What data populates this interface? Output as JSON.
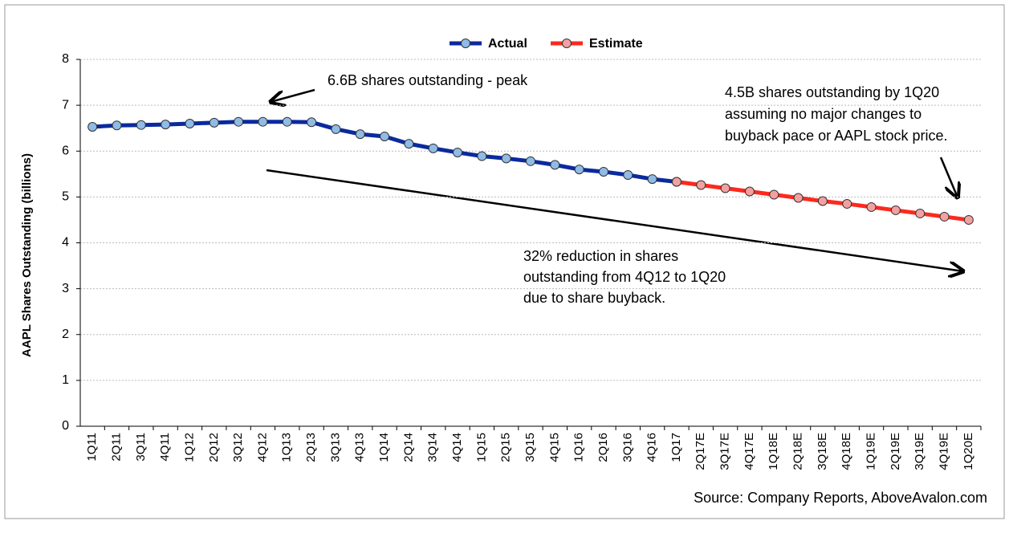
{
  "chart_data": {
    "type": "line",
    "y_label": "AAPL Shares Outstanding (billions)",
    "categories": [
      "1Q11",
      "2Q11",
      "3Q11",
      "4Q11",
      "1Q12",
      "2Q12",
      "3Q12",
      "4Q12",
      "1Q13",
      "2Q13",
      "3Q13",
      "4Q13",
      "1Q14",
      "2Q14",
      "3Q14",
      "4Q14",
      "1Q15",
      "2Q15",
      "3Q15",
      "4Q15",
      "1Q16",
      "2Q16",
      "3Q16",
      "4Q16",
      "1Q17",
      "2Q17E",
      "3Q17E",
      "4Q17E",
      "1Q18E",
      "2Q18E",
      "3Q18E",
      "4Q18E",
      "1Q19E",
      "2Q19E",
      "3Q19E",
      "4Q19E",
      "1Q20E"
    ],
    "series": [
      {
        "name": "Actual",
        "color": "#0a2a9e",
        "marker_color": "#8fbbe6",
        "values": [
          6.53,
          6.56,
          6.57,
          6.58,
          6.6,
          6.62,
          6.64,
          6.64,
          6.64,
          6.63,
          6.48,
          6.37,
          6.32,
          6.16,
          6.06,
          5.97,
          5.89,
          5.84,
          5.78,
          5.7,
          5.6,
          5.55,
          5.48,
          5.39,
          5.33,
          null,
          null,
          null,
          null,
          null,
          null,
          null,
          null,
          null,
          null,
          null,
          null
        ]
      },
      {
        "name": "Estimate",
        "color": "#fb2a1e",
        "marker_color": "#f4a0a0",
        "values": [
          null,
          null,
          null,
          null,
          null,
          null,
          null,
          null,
          null,
          null,
          null,
          null,
          null,
          null,
          null,
          null,
          null,
          null,
          null,
          null,
          null,
          null,
          null,
          null,
          5.33,
          5.26,
          5.19,
          5.12,
          5.05,
          4.98,
          4.91,
          4.85,
          4.78,
          4.71,
          4.64,
          4.57,
          4.5
        ]
      }
    ],
    "ylim": [
      0,
      8
    ],
    "yticks": [
      0,
      1,
      2,
      3,
      4,
      5,
      6,
      7,
      8
    ],
    "grid": true,
    "legend": "top",
    "annotations": [
      {
        "lines": [
          "6.6B shares outstanding - peak"
        ]
      },
      {
        "lines": [
          "4.5B shares outstanding by 1Q20",
          "assuming no major changes to",
          "buyback pace or AAPL stock price."
        ]
      },
      {
        "lines": [
          "32% reduction in shares",
          "outstanding from 4Q12 to 1Q20",
          "due to share buyback."
        ]
      }
    ],
    "source": "Source: Company Reports, AboveAvalon.com"
  }
}
